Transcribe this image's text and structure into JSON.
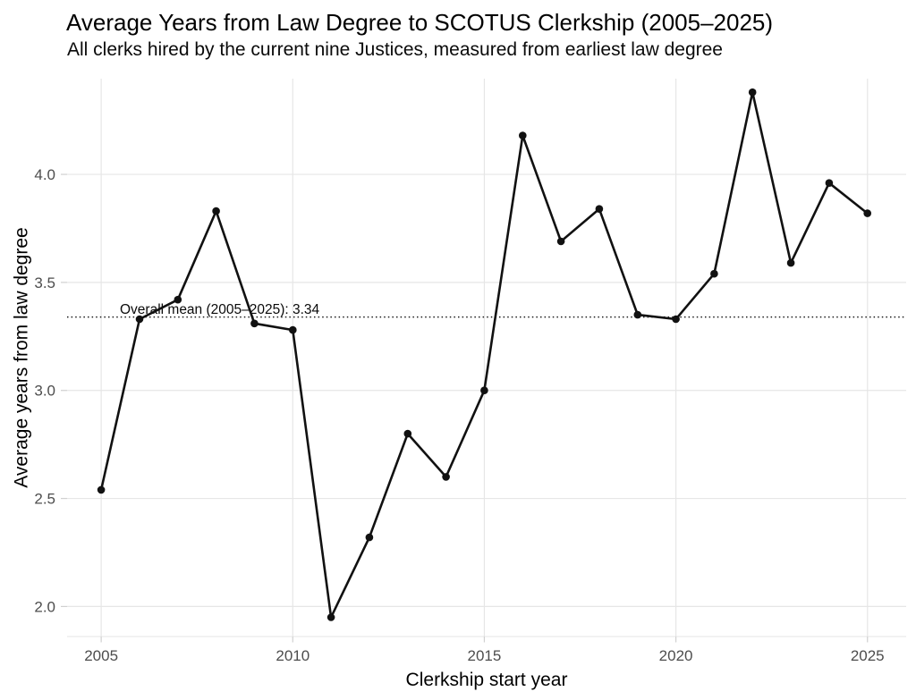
{
  "chart_data": {
    "type": "line",
    "title": "Average Years from Law Degree to SCOTUS Clerkship (2005–2025)",
    "subtitle": "All clerks hired by the current nine Justices, measured from earliest law degree",
    "xlabel": "Clerkship start year",
    "ylabel": "Average years from law degree",
    "x": [
      2005,
      2006,
      2007,
      2008,
      2009,
      2010,
      2011,
      2012,
      2013,
      2014,
      2015,
      2016,
      2017,
      2018,
      2019,
      2020,
      2021,
      2022,
      2023,
      2024,
      2025
    ],
    "values": [
      2.54,
      3.33,
      3.42,
      3.83,
      3.31,
      3.28,
      1.95,
      2.32,
      2.8,
      2.6,
      3.0,
      4.18,
      3.69,
      3.84,
      3.35,
      3.33,
      3.54,
      4.38,
      3.59,
      3.96,
      3.82
    ],
    "xticks": [
      2005,
      2010,
      2015,
      2020,
      2025
    ],
    "yticks": [
      2.0,
      2.5,
      3.0,
      3.5,
      4.0
    ],
    "xlim": [
      2004.11,
      2026.01
    ],
    "ylim": [
      1.861,
      4.443
    ],
    "grid": "major-only",
    "legend": "none",
    "mean_line": {
      "value": 3.34,
      "label": "Overall mean (2005–2025): 3.34",
      "line_style": "dotted"
    },
    "colors": {
      "line": "#111111",
      "point": "#111111",
      "mean_line": "#1a1a1a",
      "grid": "#e6e6e6",
      "tick": "#d0d0d0",
      "tick_label": "#4d4d4d",
      "text": "#000000"
    }
  }
}
